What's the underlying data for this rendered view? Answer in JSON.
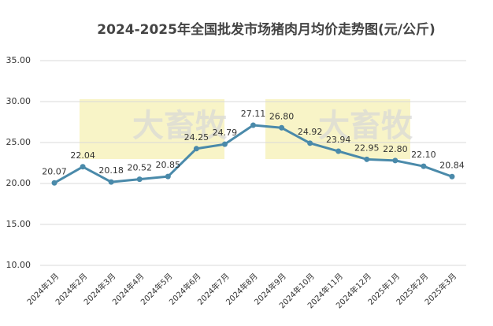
{
  "chart_data": {
    "type": "line",
    "title": "2024-2025年全国批发市场猪肉月均价走势图(元/公斤)",
    "watermark": "大畜牧",
    "categories": [
      "2024年1月",
      "2024年2月",
      "2024年3月",
      "2024年4月",
      "2024年5月",
      "2024年6月",
      "2024年7月",
      "2024年8月",
      "2024年9月",
      "2024年10月",
      "2024年11月",
      "2024年12月",
      "2025年1月",
      "2025年2月",
      "2025年3月"
    ],
    "values": [
      20.07,
      22.04,
      20.18,
      20.52,
      20.85,
      24.25,
      24.79,
      27.11,
      26.8,
      24.92,
      23.94,
      22.95,
      22.8,
      22.1,
      20.84
    ],
    "value_labels": [
      "20.07",
      "22.04",
      "20.18",
      "20.52",
      "20.85",
      "24.25",
      "24.79",
      "27.11",
      "26.80",
      "24.92",
      "23.94",
      "22.95",
      "22.80",
      "22.10",
      "20.84"
    ],
    "color": "#4a8aaa",
    "ylim": [
      10,
      35
    ],
    "yticks": [
      {
        "value": 10,
        "label": "10.00"
      },
      {
        "value": 15,
        "label": "15.00"
      },
      {
        "value": 20,
        "label": "20.00"
      },
      {
        "value": 25,
        "label": "25.00"
      },
      {
        "value": 30,
        "label": "30.00"
      },
      {
        "value": 35,
        "label": "35.00"
      }
    ],
    "grid": true
  }
}
